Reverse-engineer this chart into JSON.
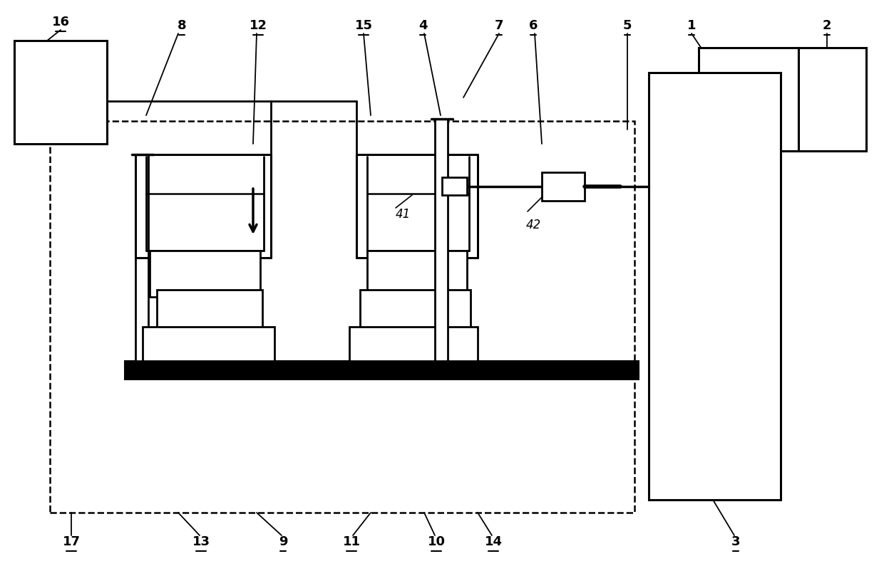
{
  "bg_color": "#ffffff",
  "lc": "#000000",
  "fig_w": 12.4,
  "fig_h": 8.02,
  "dpi": 100
}
